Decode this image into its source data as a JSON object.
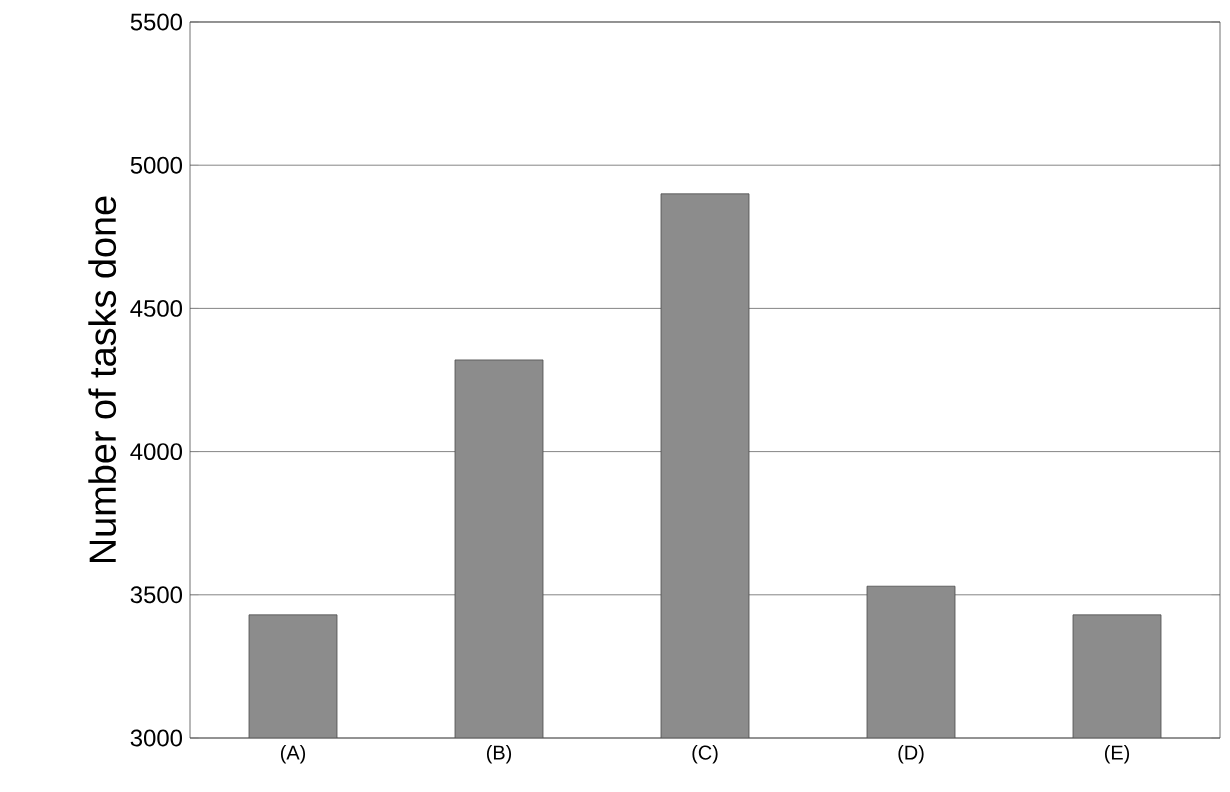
{
  "chart_data": {
    "type": "bar",
    "ylabel": "Number of tasks done",
    "categories": [
      "(A)",
      "(B)",
      "(C)",
      "(D)",
      "(E)"
    ],
    "values": [
      3430,
      4320,
      4900,
      3530,
      3430
    ],
    "color": "#8c8c8c",
    "ylim": [
      3000,
      5500
    ],
    "yticks": [
      3000,
      3500,
      4000,
      4500,
      5000,
      5500
    ],
    "grid": "y"
  }
}
